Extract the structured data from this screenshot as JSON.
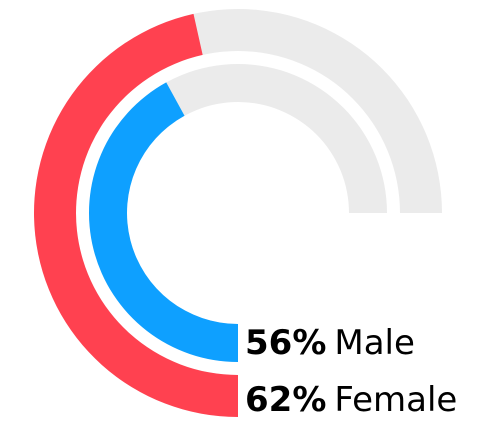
{
  "chart_data": {
    "type": "radial-bar",
    "track_color": "#ebebeb",
    "series": [
      {
        "name": "Male",
        "value": 56,
        "value_label": "56%",
        "color": "#0ea0ff"
      },
      {
        "name": "Female",
        "value": 62,
        "value_label": "62%",
        "color": "#ff4150"
      }
    ]
  }
}
